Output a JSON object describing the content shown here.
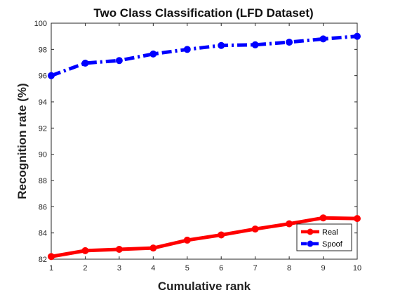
{
  "chart_data": {
    "type": "line",
    "title": "Two Class Classification (LFD Dataset)",
    "xlabel": "Cumulative rank",
    "ylabel": "Recognition rate (%)",
    "xlim": [
      1,
      10
    ],
    "ylim": [
      82,
      100
    ],
    "xticks": [
      1,
      2,
      3,
      4,
      5,
      6,
      7,
      8,
      9,
      10
    ],
    "yticks": [
      82,
      84,
      86,
      88,
      90,
      92,
      94,
      96,
      98,
      100
    ],
    "grid": false,
    "legend_position": "bottom-right",
    "x": [
      1,
      2,
      3,
      4,
      5,
      6,
      7,
      8,
      9,
      10
    ],
    "series": [
      {
        "name": "Real",
        "color": "#ff0000",
        "line_style": "solid",
        "marker": "circle",
        "values": [
          82.2,
          82.65,
          82.75,
          82.85,
          83.45,
          83.85,
          84.3,
          84.7,
          85.15,
          85.1
        ]
      },
      {
        "name": "Spoof",
        "color": "#0000ff",
        "line_style": "dash-dot",
        "marker": "circle",
        "values": [
          96.0,
          96.95,
          97.15,
          97.65,
          98.0,
          98.3,
          98.35,
          98.55,
          98.8,
          99.0
        ]
      }
    ]
  }
}
